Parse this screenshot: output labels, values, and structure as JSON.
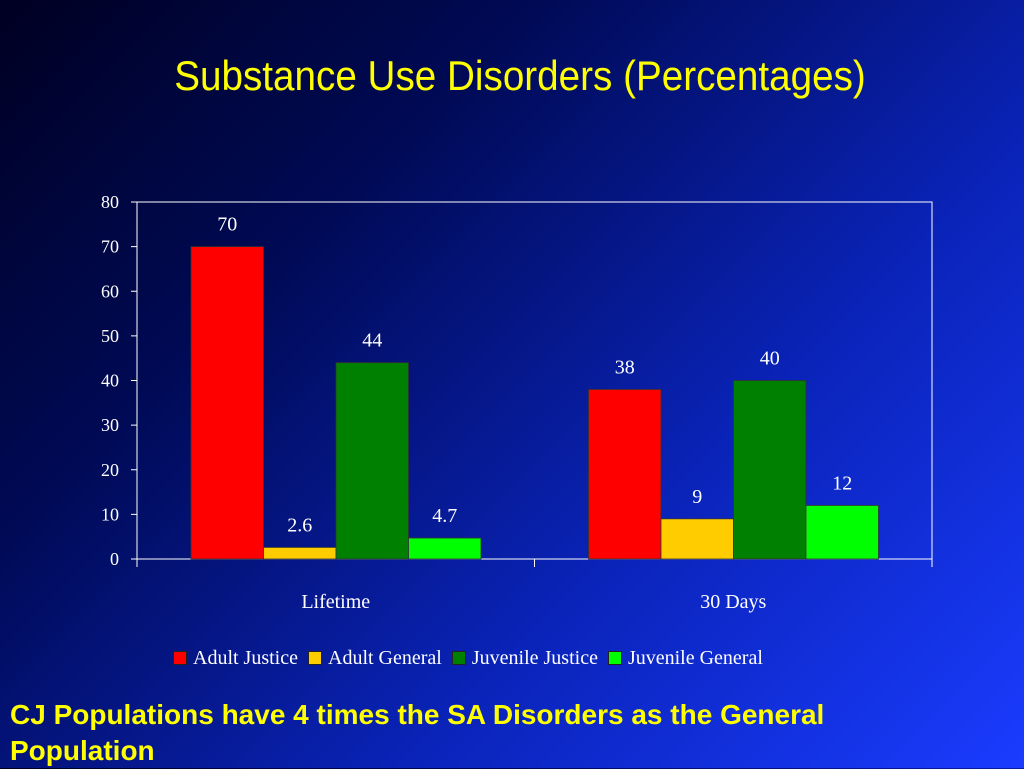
{
  "slide": {
    "title": "Substance Use Disorders (Percentages)",
    "caption": "CJ Populations have 4 times the SA Disorders as the General Population"
  },
  "chart_data": {
    "type": "bar",
    "categories": [
      "Lifetime",
      "30 Days"
    ],
    "series": [
      {
        "name": "Adult Justice",
        "values": [
          70,
          38
        ],
        "color": "#ff0000"
      },
      {
        "name": "Adult General",
        "values": [
          2.6,
          9
        ],
        "color": "#ffcc00"
      },
      {
        "name": "Juvenile Justice",
        "values": [
          44,
          40
        ],
        "color": "#008000"
      },
      {
        "name": "Juvenile General",
        "values": [
          4.7,
          12
        ],
        "color": "#00ff00"
      }
    ],
    "data_labels": [
      [
        "70",
        "38"
      ],
      [
        "2.6",
        "9"
      ],
      [
        "44",
        "40"
      ],
      [
        "4.7",
        "12"
      ]
    ],
    "ylim": [
      0,
      80
    ],
    "yticks": [
      0,
      10,
      20,
      30,
      40,
      50,
      60,
      70,
      80
    ],
    "grid": false,
    "legend": "bottom",
    "title": "",
    "xlabel": "",
    "ylabel": ""
  }
}
